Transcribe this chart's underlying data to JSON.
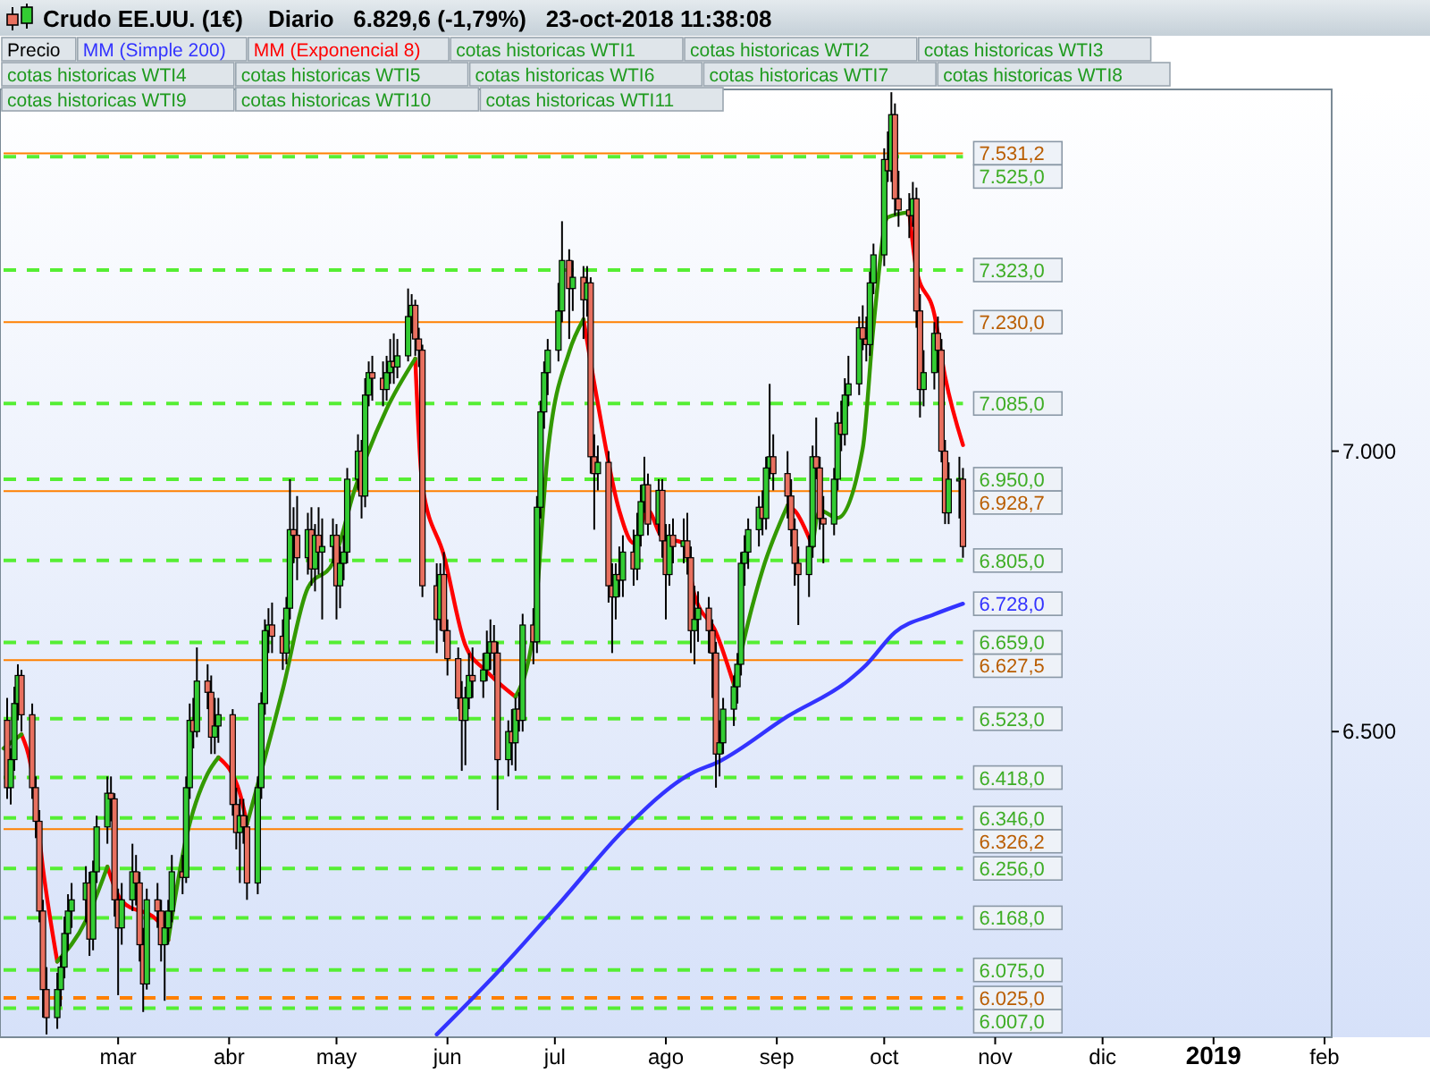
{
  "chart_data": {
    "type": "candlestick",
    "title": "Crudo EE.UU. (1€)",
    "subtitle": "Diario   6.829,6 (-1,79%)   23-oct-2018 11:38:08",
    "legend": "top",
    "xlim": [
      "2018-01-28",
      "2019-02-03"
    ],
    "xticks": [
      {
        "value": "2018-03-01",
        "label": "mar"
      },
      {
        "value": "2018-04-01",
        "label": "abr"
      },
      {
        "value": "2018-05-01",
        "label": "may"
      },
      {
        "value": "2018-06-01",
        "label": "jun"
      },
      {
        "value": "2018-07-01",
        "label": "jul"
      },
      {
        "value": "2018-08-01",
        "label": "ago"
      },
      {
        "value": "2018-09-01",
        "label": "sep"
      },
      {
        "value": "2018-10-01",
        "label": "oct"
      },
      {
        "value": "2018-11-01",
        "label": "nov"
      },
      {
        "value": "2018-12-01",
        "label": "dic"
      },
      {
        "value": "2019-01-01",
        "label": "2019"
      },
      {
        "value": "2019-02-01",
        "label": "feb"
      }
    ],
    "ylim": [
      5955,
      7645
    ],
    "yticks": [
      {
        "value": 6500,
        "label": "6.500"
      },
      {
        "value": 7000,
        "label": "7.000"
      }
    ],
    "annotations": [
      "cotas historicas WTI1",
      "cotas historicas WTI2",
      "cotas historicas WTI3",
      "cotas historicas WTI4",
      "cotas historicas WTI5",
      "cotas historicas WTI6",
      "cotas historicas WTI7",
      "cotas historicas WTI8",
      "cotas historicas WTI9",
      "cotas historicas WTI10",
      "cotas historicas WTI11",
      {
        "text": "6.728,0",
        "x": "2018-10-23",
        "y": 6728
      }
    ],
    "ref_lines": [
      {
        "axis": "y",
        "value": 7531.2,
        "label": "7.531,2",
        "color": "#ff8000",
        "line_style": "solid"
      },
      {
        "axis": "y",
        "value": 7230,
        "label": "7.230,0",
        "color": "#ff8000",
        "line_style": "solid"
      },
      {
        "axis": "y",
        "value": 6928.7,
        "label": "6.928,7",
        "color": "#ff8000",
        "line_style": "solid"
      },
      {
        "axis": "y",
        "value": 6627.5,
        "label": "6.627,5",
        "color": "#ff8000",
        "line_style": "solid"
      },
      {
        "axis": "y",
        "value": 6326.2,
        "label": "6.326,2",
        "color": "#ff8000",
        "line_style": "solid"
      },
      {
        "axis": "y",
        "value": 6025,
        "label": "6.025,0",
        "color": "#ff8000",
        "line_style": "dashed"
      },
      {
        "axis": "y",
        "value": 7525,
        "label": "7.525,0",
        "color": "#55ee33",
        "line_style": "dashed"
      },
      {
        "axis": "y",
        "value": 7323,
        "label": "7.323,0",
        "color": "#55ee33",
        "line_style": "dashed"
      },
      {
        "axis": "y",
        "value": 7085,
        "label": "7.085,0",
        "color": "#55ee33",
        "line_style": "dashed"
      },
      {
        "axis": "y",
        "value": 6950,
        "label": "6.950,0",
        "color": "#55ee33",
        "line_style": "dashed"
      },
      {
        "axis": "y",
        "value": 6805,
        "label": "6.805,0",
        "color": "#55ee33",
        "line_style": "dashed"
      },
      {
        "axis": "y",
        "value": 6659,
        "label": "6.659,0",
        "color": "#55ee33",
        "line_style": "dashed"
      },
      {
        "axis": "y",
        "value": 6523,
        "label": "6.523,0",
        "color": "#55ee33",
        "line_style": "dashed"
      },
      {
        "axis": "y",
        "value": 6418,
        "label": "6.418,0",
        "color": "#55ee33",
        "line_style": "dashed"
      },
      {
        "axis": "y",
        "value": 6346,
        "label": "6.346,0",
        "color": "#55ee33",
        "line_style": "dashed"
      },
      {
        "axis": "y",
        "value": 6256,
        "label": "6.256,0",
        "color": "#55ee33",
        "line_style": "dashed"
      },
      {
        "axis": "y",
        "value": 6168,
        "label": "6.168,0",
        "color": "#55ee33",
        "line_style": "dashed"
      },
      {
        "axis": "y",
        "value": 6075,
        "label": "6.075,0",
        "color": "#55ee33",
        "line_style": "dashed"
      },
      {
        "axis": "y",
        "value": 6007,
        "label": "6.007,0",
        "color": "#55ee33",
        "line_style": "dashed"
      }
    ],
    "series": [
      {
        "name": "Precio",
        "type": "candlestick",
        "x": [
          "2018-01-29",
          "2018-01-30",
          "2018-01-31",
          "2018-02-01",
          "2018-02-02",
          "2018-02-05",
          "2018-02-06",
          "2018-02-07",
          "2018-02-08",
          "2018-02-09",
          "2018-02-12",
          "2018-02-13",
          "2018-02-14",
          "2018-02-15",
          "2018-02-16",
          "2018-02-20",
          "2018-02-21",
          "2018-02-22",
          "2018-02-23",
          "2018-02-26",
          "2018-02-27",
          "2018-02-28",
          "2018-03-01",
          "2018-03-02",
          "2018-03-05",
          "2018-03-06",
          "2018-03-07",
          "2018-03-08",
          "2018-03-09",
          "2018-03-12",
          "2018-03-13",
          "2018-03-14",
          "2018-03-15",
          "2018-03-16",
          "2018-03-19",
          "2018-03-20",
          "2018-03-21",
          "2018-03-22",
          "2018-03-23",
          "2018-03-26",
          "2018-03-27",
          "2018-03-28",
          "2018-03-29",
          "2018-04-02",
          "2018-04-03",
          "2018-04-04",
          "2018-04-05",
          "2018-04-06",
          "2018-04-09",
          "2018-04-10",
          "2018-04-11",
          "2018-04-12",
          "2018-04-13",
          "2018-04-16",
          "2018-04-17",
          "2018-04-18",
          "2018-04-19",
          "2018-04-20",
          "2018-04-23",
          "2018-04-24",
          "2018-04-25",
          "2018-04-26",
          "2018-04-27",
          "2018-04-30",
          "2018-05-01",
          "2018-05-02",
          "2018-05-03",
          "2018-05-04",
          "2018-05-07",
          "2018-05-08",
          "2018-05-09",
          "2018-05-10",
          "2018-05-11",
          "2018-05-14",
          "2018-05-15",
          "2018-05-16",
          "2018-05-17",
          "2018-05-18",
          "2018-05-21",
          "2018-05-22",
          "2018-05-23",
          "2018-05-24",
          "2018-05-25",
          "2018-05-29",
          "2018-05-30",
          "2018-05-31",
          "2018-06-01",
          "2018-06-04",
          "2018-06-05",
          "2018-06-06",
          "2018-06-07",
          "2018-06-08",
          "2018-06-11",
          "2018-06-12",
          "2018-06-13",
          "2018-06-14",
          "2018-06-15",
          "2018-06-18",
          "2018-06-19",
          "2018-06-20",
          "2018-06-21",
          "2018-06-22",
          "2018-06-25",
          "2018-06-26",
          "2018-06-27",
          "2018-06-28",
          "2018-06-29",
          "2018-07-02",
          "2018-07-03",
          "2018-07-05",
          "2018-07-06",
          "2018-07-09",
          "2018-07-10",
          "2018-07-11",
          "2018-07-12",
          "2018-07-13",
          "2018-07-16",
          "2018-07-17",
          "2018-07-18",
          "2018-07-19",
          "2018-07-20",
          "2018-07-23",
          "2018-07-24",
          "2018-07-25",
          "2018-07-26",
          "2018-07-27",
          "2018-07-30",
          "2018-07-31",
          "2018-08-01",
          "2018-08-02",
          "2018-08-03",
          "2018-08-06",
          "2018-08-07",
          "2018-08-08",
          "2018-08-09",
          "2018-08-10",
          "2018-08-13",
          "2018-08-14",
          "2018-08-15",
          "2018-08-16",
          "2018-08-17",
          "2018-08-20",
          "2018-08-21",
          "2018-08-22",
          "2018-08-23",
          "2018-08-24",
          "2018-08-27",
          "2018-08-28",
          "2018-08-29",
          "2018-08-30",
          "2018-08-31",
          "2018-09-04",
          "2018-09-05",
          "2018-09-06",
          "2018-09-07",
          "2018-09-10",
          "2018-09-11",
          "2018-09-12",
          "2018-09-13",
          "2018-09-14",
          "2018-09-17",
          "2018-09-18",
          "2018-09-19",
          "2018-09-20",
          "2018-09-21",
          "2018-09-24",
          "2018-09-25",
          "2018-09-26",
          "2018-09-27",
          "2018-09-28",
          "2018-10-01",
          "2018-10-02",
          "2018-10-03",
          "2018-10-04",
          "2018-10-05",
          "2018-10-08",
          "2018-10-09",
          "2018-10-10",
          "2018-10-11",
          "2018-10-12",
          "2018-10-15",
          "2018-10-16",
          "2018-10-17",
          "2018-10-18",
          "2018-10-19",
          "2018-10-22",
          "2018-10-23"
        ],
        "ohlc": [
          [
            6520,
            6560,
            6380,
            6400
          ],
          [
            6400,
            6470,
            6370,
            6450
          ],
          [
            6450,
            6580,
            6430,
            6550
          ],
          [
            6550,
            6620,
            6520,
            6600
          ],
          [
            6600,
            6610,
            6500,
            6530
          ],
          [
            6530,
            6550,
            6380,
            6400
          ],
          [
            6400,
            6420,
            6310,
            6340
          ],
          [
            6340,
            6360,
            6160,
            6180
          ],
          [
            6180,
            6200,
            5990,
            6040
          ],
          [
            6040,
            6080,
            5960,
            5990
          ],
          [
            5990,
            6070,
            5970,
            6040
          ],
          [
            6040,
            6100,
            6010,
            6080
          ],
          [
            6080,
            6170,
            6060,
            6140
          ],
          [
            6140,
            6210,
            6110,
            6180
          ],
          [
            6180,
            6230,
            6150,
            6200
          ],
          [
            6200,
            6260,
            6160,
            6230
          ],
          [
            6230,
            6250,
            6100,
            6130
          ],
          [
            6130,
            6270,
            6110,
            6250
          ],
          [
            6250,
            6350,
            6230,
            6330
          ],
          [
            6330,
            6420,
            6300,
            6390
          ],
          [
            6390,
            6420,
            6340,
            6380
          ],
          [
            6380,
            6390,
            6170,
            6200
          ],
          [
            6200,
            6220,
            6030,
            6150
          ],
          [
            6150,
            6230,
            6120,
            6200
          ],
          [
            6200,
            6300,
            6180,
            6250
          ],
          [
            6250,
            6280,
            6190,
            6230
          ],
          [
            6230,
            6250,
            6090,
            6120
          ],
          [
            6120,
            6150,
            6000,
            6050
          ],
          [
            6050,
            6220,
            6040,
            6200
          ],
          [
            6200,
            6230,
            6150,
            6180
          ],
          [
            6180,
            6200,
            6090,
            6120
          ],
          [
            6120,
            6180,
            6020,
            6150
          ],
          [
            6150,
            6200,
            6120,
            6180
          ],
          [
            6180,
            6280,
            6160,
            6250
          ],
          [
            6250,
            6280,
            6210,
            6240
          ],
          [
            6240,
            6420,
            6230,
            6400
          ],
          [
            6400,
            6550,
            6380,
            6520
          ],
          [
            6520,
            6560,
            6470,
            6500
          ],
          [
            6500,
            6650,
            6490,
            6590
          ],
          [
            6590,
            6620,
            6540,
            6570
          ],
          [
            6570,
            6600,
            6460,
            6490
          ],
          [
            6490,
            6560,
            6460,
            6510
          ],
          [
            6510,
            6560,
            6480,
            6530
          ],
          [
            6530,
            6540,
            6350,
            6370
          ],
          [
            6370,
            6400,
            6290,
            6320
          ],
          [
            6320,
            6380,
            6230,
            6350
          ],
          [
            6350,
            6380,
            6300,
            6330
          ],
          [
            6330,
            6350,
            6200,
            6230
          ],
          [
            6230,
            6420,
            6210,
            6400
          ],
          [
            6400,
            6570,
            6380,
            6550
          ],
          [
            6550,
            6700,
            6530,
            6680
          ],
          [
            6680,
            6720,
            6640,
            6690
          ],
          [
            6690,
            6730,
            6640,
            6670
          ],
          [
            6670,
            6700,
            6610,
            6640
          ],
          [
            6640,
            6740,
            6620,
            6720
          ],
          [
            6720,
            6950,
            6700,
            6860
          ],
          [
            6860,
            6900,
            6800,
            6850
          ],
          [
            6850,
            6920,
            6770,
            6810
          ],
          [
            6810,
            6890,
            6780,
            6860
          ],
          [
            6860,
            6900,
            6760,
            6790
          ],
          [
            6790,
            6870,
            6750,
            6850
          ],
          [
            6850,
            6900,
            6780,
            6820
          ],
          [
            6820,
            6880,
            6700,
            6830
          ],
          [
            6830,
            6880,
            6800,
            6850
          ],
          [
            6850,
            6870,
            6700,
            6760
          ],
          [
            6760,
            6830,
            6720,
            6800
          ],
          [
            6800,
            6850,
            6770,
            6820
          ],
          [
            6820,
            6970,
            6800,
            6950
          ],
          [
            6950,
            7030,
            6930,
            7000
          ],
          [
            7000,
            7020,
            6880,
            6920
          ],
          [
            6920,
            7130,
            6900,
            7100
          ],
          [
            7100,
            7160,
            7080,
            7140
          ],
          [
            7140,
            7170,
            7090,
            7130
          ],
          [
            7130,
            7160,
            7080,
            7110
          ],
          [
            7110,
            7170,
            7090,
            7140
          ],
          [
            7140,
            7200,
            7120,
            7160
          ],
          [
            7160,
            7210,
            7120,
            7150
          ],
          [
            7150,
            7200,
            7130,
            7170
          ],
          [
            7170,
            7290,
            7160,
            7240
          ],
          [
            7240,
            7280,
            7210,
            7260
          ],
          [
            7260,
            7270,
            7170,
            7200
          ],
          [
            7200,
            7220,
            7150,
            7180
          ],
          [
            7180,
            7190,
            6740,
            6760
          ],
          [
            6760,
            6800,
            6640,
            6700
          ],
          [
            6700,
            6800,
            6680,
            6780
          ],
          [
            6780,
            6820,
            6660,
            6680
          ],
          [
            6680,
            6700,
            6600,
            6630
          ],
          [
            6630,
            6650,
            6540,
            6560
          ],
          [
            6560,
            6590,
            6430,
            6520
          ],
          [
            6520,
            6580,
            6440,
            6560
          ],
          [
            6560,
            6640,
            6540,
            6600
          ],
          [
            6600,
            6650,
            6560,
            6590
          ],
          [
            6590,
            6640,
            6560,
            6610
          ],
          [
            6610,
            6680,
            6590,
            6640
          ],
          [
            6640,
            6700,
            6610,
            6660
          ],
          [
            6660,
            6690,
            6600,
            6640
          ],
          [
            6640,
            6660,
            6360,
            6450
          ],
          [
            6450,
            6520,
            6420,
            6500
          ],
          [
            6500,
            6540,
            6440,
            6480
          ],
          [
            6480,
            6560,
            6430,
            6540
          ],
          [
            6540,
            6570,
            6500,
            6520
          ],
          [
            6520,
            6710,
            6500,
            6690
          ],
          [
            6690,
            6720,
            6620,
            6660
          ],
          [
            6660,
            6920,
            6640,
            6900
          ],
          [
            6900,
            7090,
            6880,
            7070
          ],
          [
            7070,
            7160,
            7040,
            7140
          ],
          [
            7140,
            7200,
            7100,
            7180
          ],
          [
            7180,
            7300,
            7160,
            7250
          ],
          [
            7250,
            7410,
            7230,
            7340
          ],
          [
            7340,
            7360,
            7200,
            7290
          ],
          [
            7290,
            7340,
            7250,
            7310
          ],
          [
            7310,
            7330,
            7200,
            7270
          ],
          [
            7270,
            7330,
            7240,
            7300
          ],
          [
            7300,
            7310,
            6960,
            6990
          ],
          [
            6990,
            7030,
            6860,
            6960
          ],
          [
            6960,
            7010,
            6930,
            6980
          ],
          [
            6980,
            7000,
            6730,
            6760
          ],
          [
            6760,
            6800,
            6640,
            6740
          ],
          [
            6740,
            6800,
            6700,
            6780
          ],
          [
            6780,
            6830,
            6740,
            6770
          ],
          [
            6770,
            6850,
            6740,
            6820
          ],
          [
            6820,
            6860,
            6760,
            6790
          ],
          [
            6790,
            6890,
            6770,
            6850
          ],
          [
            6850,
            6940,
            6830,
            6910
          ],
          [
            6910,
            6990,
            6890,
            6940
          ],
          [
            6940,
            6960,
            6850,
            6870
          ],
          [
            6870,
            6950,
            6850,
            6930
          ],
          [
            6930,
            6950,
            6810,
            6840
          ],
          [
            6840,
            6870,
            6700,
            6780
          ],
          [
            6780,
            6870,
            6760,
            6850
          ],
          [
            6850,
            6880,
            6800,
            6830
          ],
          [
            6830,
            6880,
            6800,
            6840
          ],
          [
            6840,
            6890,
            6780,
            6810
          ],
          [
            6810,
            6830,
            6640,
            6680
          ],
          [
            6680,
            6760,
            6620,
            6700
          ],
          [
            6700,
            6750,
            6660,
            6720
          ],
          [
            6720,
            6740,
            6640,
            6680
          ],
          [
            6680,
            6700,
            6560,
            6640
          ],
          [
            6640,
            6660,
            6400,
            6460
          ],
          [
            6460,
            6520,
            6420,
            6480
          ],
          [
            6480,
            6560,
            6460,
            6540
          ],
          [
            6540,
            6600,
            6510,
            6580
          ],
          [
            6580,
            6640,
            6550,
            6620
          ],
          [
            6620,
            6820,
            6600,
            6800
          ],
          [
            6800,
            6850,
            6760,
            6820
          ],
          [
            6820,
            6880,
            6790,
            6860
          ],
          [
            6860,
            6920,
            6830,
            6900
          ],
          [
            6900,
            6930,
            6850,
            6880
          ],
          [
            6880,
            6990,
            6860,
            6970
          ],
          [
            6970,
            7120,
            6950,
            6990
          ],
          [
            6990,
            7030,
            6930,
            6960
          ],
          [
            6960,
            7000,
            6880,
            6920
          ],
          [
            6920,
            6950,
            6830,
            6860
          ],
          [
            6860,
            6880,
            6760,
            6800
          ],
          [
            6800,
            6830,
            6690,
            6780
          ],
          [
            6780,
            6850,
            6740,
            6830
          ],
          [
            6830,
            7010,
            6810,
            6990
          ],
          [
            6990,
            7060,
            6950,
            6970
          ],
          [
            6970,
            6990,
            6860,
            6880
          ],
          [
            6880,
            6920,
            6800,
            6870
          ],
          [
            6870,
            6970,
            6850,
            6950
          ],
          [
            6950,
            7070,
            6930,
            7050
          ],
          [
            7050,
            7090,
            7000,
            7030
          ],
          [
            7030,
            7130,
            7010,
            7100
          ],
          [
            7100,
            7170,
            7080,
            7120
          ],
          [
            7120,
            7240,
            7100,
            7220
          ],
          [
            7220,
            7260,
            7180,
            7200
          ],
          [
            7200,
            7240,
            7160,
            7190
          ],
          [
            7190,
            7320,
            7170,
            7300
          ],
          [
            7300,
            7370,
            7280,
            7350
          ],
          [
            7350,
            7540,
            7330,
            7520
          ],
          [
            7520,
            7570,
            7480,
            7500
          ],
          [
            7500,
            7640,
            7480,
            7600
          ],
          [
            7600,
            7620,
            7420,
            7450
          ],
          [
            7450,
            7500,
            7400,
            7430
          ],
          [
            7430,
            7460,
            7380,
            7420
          ],
          [
            7420,
            7480,
            7400,
            7450
          ],
          [
            7450,
            7470,
            7220,
            7250
          ],
          [
            7250,
            7280,
            7060,
            7110
          ],
          [
            7110,
            7180,
            7080,
            7140
          ],
          [
            7140,
            7230,
            7110,
            7210
          ],
          [
            7210,
            7240,
            7140,
            7180
          ],
          [
            7180,
            7200,
            6980,
            7000
          ],
          [
            7000,
            7020,
            6870,
            6890
          ],
          [
            6890,
            6980,
            6870,
            6950
          ],
          [
            6950,
            6990,
            6880,
            6950
          ],
          [
            6950,
            6970,
            6810,
            6830
          ]
        ]
      },
      {
        "name": "MM (Simple 200)",
        "type": "line",
        "color": "#3333ff",
        "x": [
          "2018-05-29",
          "2018-06-15",
          "2018-07-03",
          "2018-07-20",
          "2018-08-08",
          "2018-08-16",
          "2018-09-04",
          "2018-09-21",
          "2018-09-26",
          "2018-10-04",
          "2018-10-15",
          "2018-10-23"
        ],
        "values": [
          5960,
          6071,
          6199,
          6323,
          6425,
          6447,
          6527,
          6591,
          6619,
          6677,
          6709,
          6728
        ]
      },
      {
        "name": "MM (Exponencial 8)",
        "type": "line",
        "color": "#ff0000",
        "x": [
          "2018-02-02",
          "2018-02-05",
          "2018-02-08",
          "2018-02-12",
          "2018-02-20",
          "2018-02-26",
          "2018-03-02",
          "2018-03-12",
          "2018-03-15",
          "2018-03-20",
          "2018-03-26",
          "2018-03-29",
          "2018-04-04",
          "2018-04-06",
          "2018-04-16",
          "2018-04-23",
          "2018-04-30",
          "2018-05-08",
          "2018-05-15",
          "2018-05-23",
          "2018-05-25",
          "2018-05-31",
          "2018-06-06",
          "2018-06-12",
          "2018-06-20",
          "2018-06-25",
          "2018-06-29",
          "2018-07-05",
          "2018-07-09",
          "2018-07-13",
          "2018-07-19",
          "2018-07-23",
          "2018-07-27",
          "2018-07-31",
          "2018-08-06",
          "2018-08-09",
          "2018-08-15",
          "2018-08-20",
          "2018-08-22",
          "2018-08-28",
          "2018-09-04",
          "2018-09-06",
          "2018-09-11",
          "2018-09-13",
          "2018-09-18",
          "2018-09-25",
          "2018-09-28",
          "2018-10-02",
          "2018-10-08",
          "2018-10-10",
          "2018-10-15",
          "2018-10-18",
          "2018-10-23"
        ],
        "values": [
          6495,
          6425,
          6256,
          6090,
          null,
          6259,
          6198,
          6163,
          6128,
          null,
          null,
          6454,
          6390,
          6335,
          null,
          null,
          null,
          null,
          null,
          7165,
          6938,
          6814,
          6654,
          6607,
          6562,
          null,
          null,
          null,
          7235,
          7085,
          6894,
          6836,
          6894,
          6846,
          6836,
          6744,
          6677,
          6584,
          null,
          null,
          6903,
          6894,
          6830,
          null,
          null,
          null,
          null,
          null,
          7426,
          7324,
          7244,
          7133,
          7011
        ]
      },
      {
        "type": "line",
        "color": "#339900",
        "x": [
          "2018-01-28",
          "2018-02-02",
          "2018-02-05",
          "2018-02-08",
          "2018-02-12",
          "2018-02-20",
          "2018-02-26",
          "2018-03-02",
          "2018-03-12",
          "2018-03-15",
          "2018-03-20",
          "2018-03-26",
          "2018-03-29",
          "2018-04-04",
          "2018-04-06",
          "2018-04-16",
          "2018-04-23",
          "2018-04-30",
          "2018-05-06",
          "2018-05-15",
          "2018-05-23",
          "2018-05-25",
          "2018-05-31",
          "2018-06-06",
          "2018-06-12",
          "2018-06-20",
          "2018-06-25",
          "2018-06-29",
          "2018-07-05",
          "2018-07-09",
          "2018-07-13",
          "2018-07-19",
          "2018-07-23",
          "2018-07-27",
          "2018-07-31",
          "2018-08-06",
          "2018-08-09",
          "2018-08-15",
          "2018-08-20",
          "2018-08-25",
          "2018-08-28",
          "2018-09-04",
          "2018-09-06",
          "2018-09-11",
          "2018-09-13",
          "2018-09-18",
          "2018-09-25",
          "2018-09-28",
          "2018-10-02",
          "2018-10-08"
        ],
        "values": [
          6470,
          6495,
          null,
          null,
          6090,
          6163,
          6259,
          null,
          null,
          6128,
          6310,
          6425,
          6454,
          null,
          6335,
          6575,
          6756,
          6801,
          6930,
          7075,
          7165,
          null,
          null,
          null,
          null,
          6562,
          6677,
          6996,
          7177,
          7235,
          null,
          null,
          null,
          null,
          null,
          null,
          null,
          null,
          6584,
          6720,
          6788,
          6903,
          null,
          6830,
          6894,
          6881,
          7005,
          7222,
          7417,
          7426
        ]
      }
    ]
  }
}
